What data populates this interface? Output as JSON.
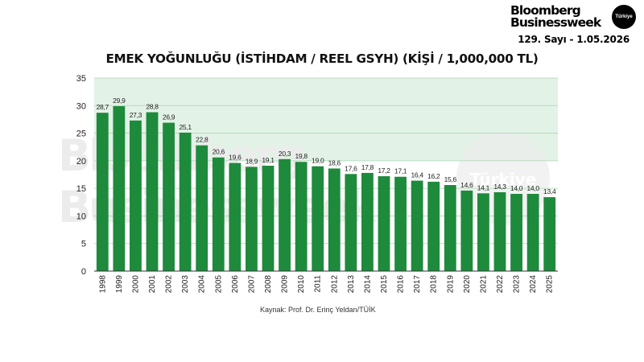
{
  "header": {
    "brand_line1": "Bloomberg",
    "brand_line2": "Businessweek",
    "badge": "Türkiye",
    "issue": "129. Sayı - 1.05.2026"
  },
  "colors": {
    "bar": "#1e8a3c",
    "band": "#e3f2e6",
    "gridline": "#a9d6b1",
    "axis": "#333333",
    "watermark": "#ececec"
  },
  "watermark": {
    "line1": "Bloomberg",
    "line2": "Businessweek",
    "badge": "Türkiye"
  },
  "chart_data": {
    "type": "bar",
    "title": "EMEK YOĞUNLUĞU (İSTİHDAM / REEL GSYH) (KİŞİ / 1,000,000 TL)",
    "xlabel": "",
    "ylabel": "",
    "ylim": [
      0,
      35
    ],
    "yticks": [
      "0",
      "5",
      "10",
      "15",
      "20",
      "25",
      "30",
      "35"
    ],
    "shaded_bands": [
      [
        25,
        30
      ],
      [
        30,
        35
      ],
      [
        20,
        25
      ]
    ],
    "grid": true,
    "categories": [
      "1998",
      "1999",
      "2000",
      "2001",
      "2002",
      "2003",
      "2004",
      "2005",
      "2006",
      "2007",
      "2008",
      "2009",
      "2010",
      "2011",
      "2012",
      "2013",
      "2014",
      "2015",
      "2016",
      "2017",
      "2018",
      "2019",
      "2020",
      "2021",
      "2022",
      "2023",
      "2024",
      "2025"
    ],
    "values": [
      28.7,
      29.9,
      27.3,
      28.8,
      26.9,
      25.1,
      22.8,
      20.6,
      19.6,
      18.9,
      19.1,
      20.3,
      19.8,
      19.0,
      18.6,
      17.6,
      17.8,
      17.2,
      17.1,
      16.4,
      16.2,
      15.6,
      14.6,
      14.1,
      14.3,
      14.0,
      14.0,
      13.4
    ],
    "value_labels": [
      "28,7",
      "29,9",
      "27,3",
      "28,8",
      "26,9",
      "25,1",
      "22,8",
      "20,6",
      "19,6",
      "18,9",
      "19,1",
      "20,3",
      "19,8",
      "19,0",
      "18,6",
      "17,6",
      "17,8",
      "17,2",
      "17,1",
      "16,4",
      "16,2",
      "15,6",
      "14,6",
      "14,1",
      "14,3",
      "14,0",
      "14,0",
      "13,4"
    ],
    "source": "Kaynak: Prof. Dr. Erinç Yeldan/TÜİK"
  }
}
